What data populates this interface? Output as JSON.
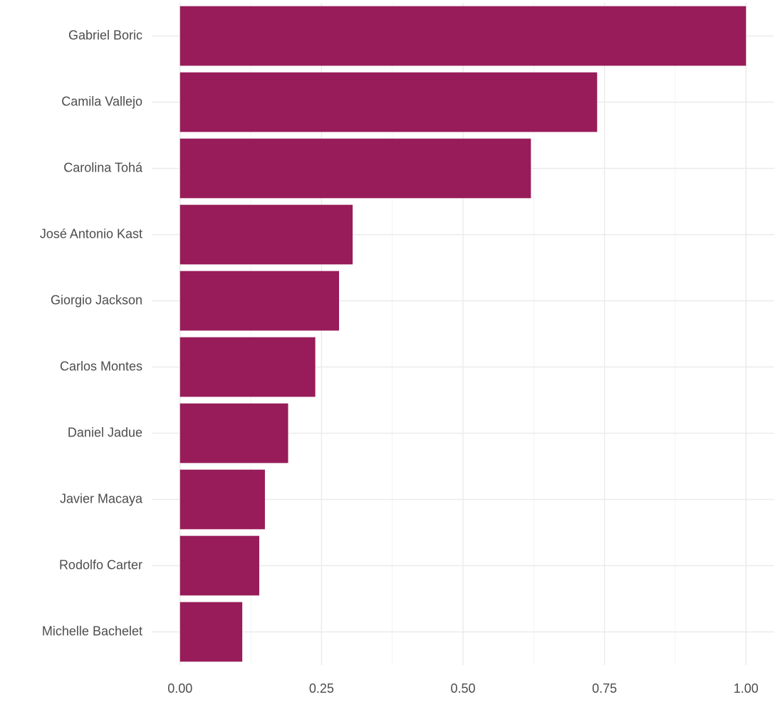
{
  "chart_data": {
    "type": "hbar",
    "categories": [
      "Gabriel Boric",
      "Camila Vallejo",
      "Carolina Tohá",
      "José Antonio Kast",
      "Giorgio Jackson",
      "Carlos Montes",
      "Daniel Jadue",
      "Javier Macaya",
      "Rodolfo Carter",
      "Michelle Bachelet"
    ],
    "values": [
      1.0,
      0.737,
      0.62,
      0.305,
      0.281,
      0.239,
      0.191,
      0.15,
      0.14,
      0.11
    ],
    "color": "#981c59",
    "xlim": [
      -0.05,
      1.05
    ],
    "xticks": [
      {
        "value": 0,
        "label": "0.00"
      },
      {
        "value": 0.25,
        "label": "0.25"
      },
      {
        "value": 0.5,
        "label": "0.50"
      },
      {
        "value": 0.75,
        "label": "0.75"
      },
      {
        "value": 1,
        "label": "1.00"
      }
    ],
    "minor_xticks": [
      0.125,
      0.375,
      0.625,
      0.875
    ],
    "grid": true
  }
}
